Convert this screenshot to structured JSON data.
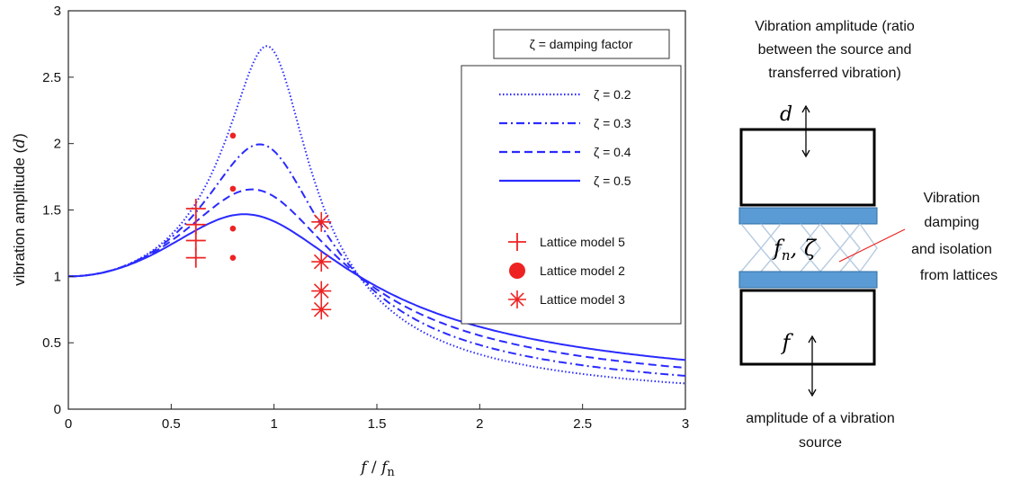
{
  "chart_data": {
    "type": "line",
    "xlabel": "f / f_n",
    "xlabel_parts": {
      "numerator": "f",
      "divider": " / ",
      "base": "f",
      "sub": "n"
    },
    "ylabel": "vibration amplitude (d)",
    "ylabel_parts": {
      "text": "vibration amplitude (",
      "sym": "d",
      "close": ")"
    },
    "xlim": [
      0,
      3
    ],
    "ylim": [
      0,
      3
    ],
    "xticks": [
      "0",
      "0.5",
      "1",
      "1.5",
      "2",
      "2.5",
      "3"
    ],
    "xtick_values": [
      0,
      0.5,
      1,
      1.5,
      2,
      2.5,
      3
    ],
    "yticks": [
      "0",
      "0.5",
      "1",
      "1.5",
      "2",
      "2.5",
      "3"
    ],
    "ytick_values": [
      0,
      0.5,
      1,
      1.5,
      2,
      2.5,
      3
    ],
    "grid": false,
    "series": [
      {
        "name": "ζ = 0.2",
        "zeta": 0.2,
        "color": "#2a2aff",
        "style": "dotted"
      },
      {
        "name": "ζ = 0.3",
        "zeta": 0.3,
        "color": "#2a2aff",
        "style": "dashdot"
      },
      {
        "name": "ζ = 0.4",
        "zeta": 0.4,
        "color": "#2a2aff",
        "style": "dashed"
      },
      {
        "name": "ζ = 0.5",
        "zeta": 0.5,
        "color": "#2a2aff",
        "style": "solid"
      }
    ],
    "markers": [
      {
        "name": "Lattice model 5",
        "symbol": "plus",
        "color": "#ee2222",
        "points": [
          [
            0.62,
            1.14
          ],
          [
            0.62,
            1.27
          ],
          [
            0.62,
            1.39
          ],
          [
            0.62,
            1.51
          ]
        ]
      },
      {
        "name": "Lattice model 2",
        "symbol": "dot",
        "color": "#ee2222",
        "points": [
          [
            0.8,
            1.14
          ],
          [
            0.8,
            1.36
          ],
          [
            0.8,
            1.66
          ],
          [
            0.8,
            2.06
          ]
        ]
      },
      {
        "name": "Lattice model 3",
        "symbol": "asterisk",
        "color": "#ee2222",
        "points": [
          [
            1.23,
            0.75
          ],
          [
            1.23,
            0.89
          ],
          [
            1.23,
            1.11
          ],
          [
            1.23,
            1.41
          ]
        ]
      }
    ],
    "legend_title": "ζ = damping factor",
    "legend_position": "top-right"
  },
  "diagram": {
    "title_lines": [
      "Vibration amplitude (ratio",
      "between the source and",
      "transferred vibration)"
    ],
    "top_symbol": "d",
    "bottom_symbol": "f",
    "middle_label": {
      "base": "f",
      "sub": "n",
      "rest": ", ζ"
    },
    "side_label_lines": [
      "Vibration",
      "damping",
      "and isolation",
      "from lattices"
    ],
    "bottom_caption_lines": [
      "amplitude of a vibration",
      "source"
    ],
    "plate_color": "#5b9bd5"
  }
}
